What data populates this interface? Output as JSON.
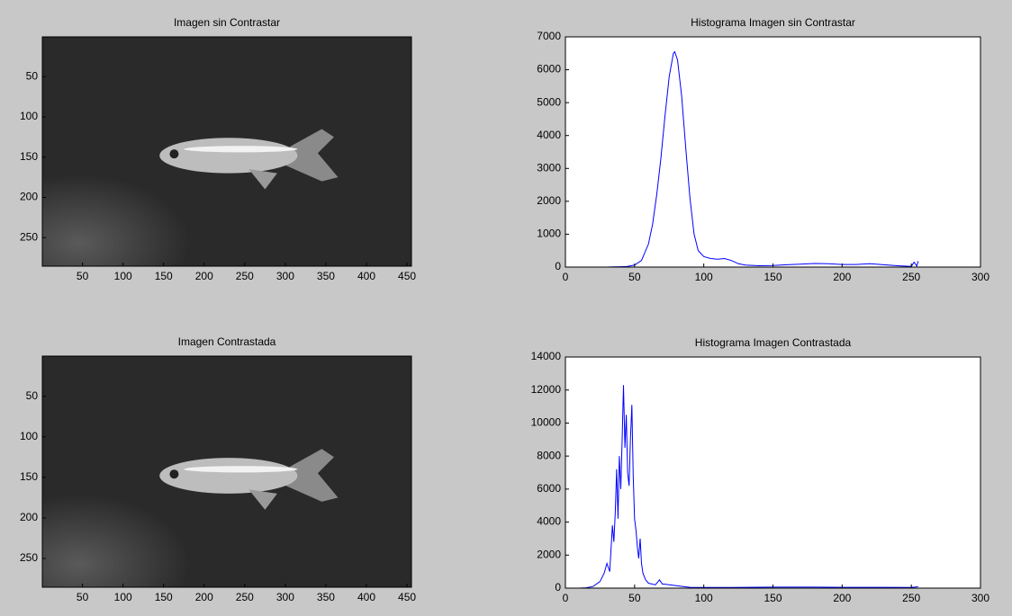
{
  "chart_data": [
    {
      "type": "image",
      "title": "Imagen sin Contrastar",
      "xlim": [
        0.5,
        455.5
      ],
      "xticks": [
        50,
        100,
        150,
        200,
        250,
        300,
        350,
        400,
        450
      ],
      "ylim": [
        285.5,
        0.5
      ],
      "yticks": [
        50,
        100,
        150,
        200,
        250
      ]
    },
    {
      "type": "line",
      "title": "Histograma Imagen sin Contrastar",
      "color": "#0000ff",
      "x": [
        0,
        10,
        20,
        30,
        35,
        40,
        45,
        50,
        55,
        60,
        63,
        66,
        69,
        72,
        75,
        78,
        79,
        81,
        84,
        87,
        90,
        93,
        96,
        100,
        105,
        110,
        115,
        120,
        125,
        130,
        140,
        150,
        160,
        170,
        180,
        190,
        200,
        210,
        220,
        230,
        240,
        250,
        252,
        254,
        255
      ],
      "values": [
        0,
        0,
        0,
        0,
        5,
        10,
        20,
        60,
        200,
        700,
        1300,
        2200,
        3300,
        4600,
        5800,
        6500,
        6550,
        6300,
        5200,
        3600,
        2100,
        1000,
        500,
        320,
        260,
        240,
        260,
        200,
        100,
        60,
        40,
        50,
        70,
        90,
        110,
        100,
        80,
        80,
        100,
        70,
        40,
        20,
        150,
        30,
        180
      ],
      "xlim": [
        0,
        300
      ],
      "xticks": [
        0,
        50,
        100,
        150,
        200,
        250,
        300
      ],
      "ylim": [
        0,
        7000
      ],
      "yticks": [
        0,
        1000,
        2000,
        3000,
        4000,
        5000,
        6000,
        7000
      ]
    },
    {
      "type": "image",
      "title": "Imagen Contrastada",
      "xlim": [
        0.5,
        455.5
      ],
      "xticks": [
        50,
        100,
        150,
        200,
        250,
        300,
        350,
        400,
        450
      ],
      "ylim": [
        285.5,
        0.5
      ],
      "yticks": [
        50,
        100,
        150,
        200,
        250
      ]
    },
    {
      "type": "line",
      "title": "Histograma Imagen Contrastada",
      "color": "#0000ff",
      "x": [
        0,
        10,
        15,
        20,
        25,
        28,
        30,
        32,
        34,
        35,
        36,
        37,
        38,
        39,
        40,
        41,
        42,
        43,
        44,
        45,
        46,
        47,
        48,
        49,
        50,
        51,
        52,
        53,
        54,
        55,
        56,
        58,
        60,
        65,
        68,
        70,
        75,
        80,
        85,
        90,
        100,
        120,
        150,
        180,
        200,
        230,
        250,
        255
      ],
      "values": [
        0,
        0,
        20,
        100,
        400,
        900,
        1500,
        1000,
        3800,
        2800,
        4500,
        7200,
        4200,
        8000,
        6000,
        9000,
        12300,
        8500,
        10500,
        7000,
        6200,
        9000,
        11100,
        6800,
        4200,
        3500,
        2500,
        1800,
        3000,
        1500,
        900,
        500,
        300,
        200,
        500,
        250,
        200,
        150,
        100,
        50,
        40,
        40,
        60,
        60,
        50,
        50,
        40,
        80
      ],
      "xlim": [
        0,
        300
      ],
      "xticks": [
        0,
        50,
        100,
        150,
        200,
        250,
        300
      ],
      "ylim": [
        0,
        14000
      ],
      "yticks": [
        0,
        2000,
        4000,
        6000,
        8000,
        10000,
        12000,
        14000
      ]
    }
  ]
}
